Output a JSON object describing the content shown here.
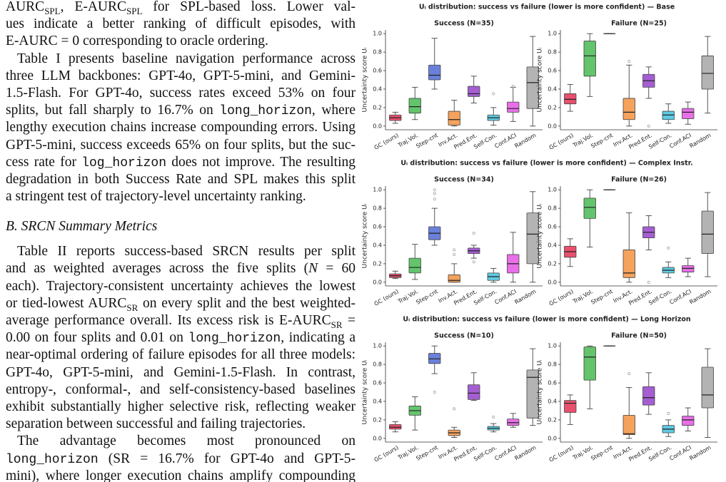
{
  "text": {
    "before_heading": [
      [
        [
          {
            "plain": "AURC"
          },
          {
            "sub": "SPL"
          },
          ", E-AURC",
          {
            "sub": "SPL"
          },
          " for SPL-based loss. Lower val-"
        ],
        [
          "ues indicate a better ranking of difficult episodes, with"
        ],
        [
          "E-AURC = 0 corresponding to oracle ordering."
        ]
      ],
      [
        [
          "Table I presents baseline navigation performance across"
        ],
        [
          "three LLM backbones: GPT-4o, GPT-5-mini, and Gemini-"
        ],
        [
          "1.5-Flash. For GPT-4o, success rates exceed 53% on four"
        ],
        [
          "splits, but fall sharply to 16.7% on ",
          {
            "mono": "long_horizon"
          },
          ", where"
        ],
        [
          "lengthy execution chains increase compounding errors. Using"
        ],
        [
          "GPT-5-mini, success exceeds 65% on four splits, but the suc-"
        ],
        [
          "cess rate for ",
          {
            "mono": "log_horizon"
          },
          " does not improve. The resulting"
        ],
        [
          "degradation in both Success Rate and SPL makes this split"
        ],
        [
          "a stringent test of trajectory-level uncertainty ranking."
        ]
      ]
    ],
    "heading": "B. SRCN Summary Metrics",
    "after_heading": [
      [
        [
          "Table II reports success-based SRCN results per split"
        ],
        [
          "and as weighted averages across the five splits (",
          {
            "i": "N"
          },
          " = 60"
        ],
        [
          "each). Trajectory-consistent uncertainty achieves the lowest"
        ],
        [
          "or tied-lowest AURC",
          {
            "sub": "SR"
          },
          " on every split and the best weighted-"
        ],
        [
          "average performance overall. Its excess risk is E-AURC",
          {
            "sub": "SR"
          },
          " ="
        ],
        [
          "0.00 on four splits and 0.01 on ",
          {
            "mono": "long_horizon"
          },
          ", indicating a"
        ],
        [
          "near-optimal ordering of failure episodes for all three models:"
        ],
        [
          "GPT-4o, GPT-5-mini, and Gemini-1.5-Flash. In contrast,"
        ],
        [
          "entropy-, conformal-, and self-consistency-based baselines"
        ],
        [
          "exhibit substantially higher selective risk, reflecting weaker"
        ],
        [
          "separation between successful and failing trajectories."
        ]
      ],
      [
        [
          "The advantage becomes most pronounced on"
        ],
        [
          {
            "mono": "long_horizon"
          },
          " (SR = 16.7% for GPT-4o and GPT-5-"
        ],
        [
          "mini), where longer execution chains amplify compounding"
        ]
      ]
    ]
  },
  "figure": {
    "row_titles": [
      "Uᵢ distribution: success vs failure  (lower is more confident)  —  Base",
      "Uᵢ distribution: success vs failure  (lower is more confident)  —  Complex Instr.",
      "Uᵢ distribution: success vs failure  (lower is more confident)  —  Long Horizon"
    ]
  },
  "chart_data": [
    {
      "type": "box",
      "title": "Success (N=35)",
      "ylabel": "Uncertainty score Uᵢ",
      "categories": [
        "GC (ours)",
        "Traj.Vol.",
        "Step-cnt",
        "Inv.Act.",
        "Pred.Ent.",
        "Self-Con.",
        "Conf.ACI",
        "Random"
      ],
      "colors": [
        "#e8516e",
        "#63c46c",
        "#6b80da",
        "#f5a25d",
        "#a55ed2",
        "#5fcbe3",
        "#e86fe8",
        "#b3b3b3"
      ],
      "ylim": [
        -0.04,
        1.04
      ],
      "yticks": [
        {
          "value": 0,
          "label": "0.0"
        },
        0.2,
        0.4,
        0.6,
        0.8,
        {
          "value": 1,
          "label": "1.0"
        }
      ],
      "stats": [
        {
          "whislo": 0.03,
          "q1": 0.06,
          "med": 0.09,
          "q3": 0.12,
          "whishi": 0.15
        },
        {
          "whislo": 0.07,
          "q1": 0.14,
          "med": 0.21,
          "q3": 0.3,
          "whishi": 0.42
        },
        {
          "whislo": 0.4,
          "q1": 0.5,
          "med": 0.55,
          "q3": 0.66,
          "whishi": 0.95
        },
        {
          "whislo": 0,
          "q1": 0.01,
          "med": 0.07,
          "q3": 0.16,
          "whishi": 0.28
        },
        {
          "whislo": 0.25,
          "q1": 0.32,
          "med": 0.35,
          "q3": 0.43,
          "whishi": 0.54
        },
        {
          "whislo": 0.01,
          "q1": 0.06,
          "med": 0.09,
          "q3": 0.12,
          "whishi": 0.2,
          "fliers": [
            0.35
          ]
        },
        {
          "whislo": 0.05,
          "q1": 0.15,
          "med": 0.19,
          "q3": 0.26,
          "whishi": 0.42,
          "fliers": [
            0.43
          ]
        },
        {
          "whislo": 0,
          "q1": 0.19,
          "med": 0.47,
          "q3": 0.64,
          "whishi": 0.97
        }
      ]
    },
    {
      "type": "box",
      "title": "Failure (N=25)",
      "ylabel": "Uncertainty score Uᵢ",
      "categories": [
        "GC (ours)",
        "Traj.Vol.",
        "Step-cnt",
        "Inv.Act.",
        "Pred.Ent.",
        "Self-Con.",
        "Conf.ACI",
        "Random"
      ],
      "colors": [
        "#e8516e",
        "#63c46c",
        "#6b80da",
        "#f5a25d",
        "#a55ed2",
        "#5fcbe3",
        "#e86fe8",
        "#b3b3b3"
      ],
      "ylim": [
        -0.04,
        1.04
      ],
      "yticks": [
        {
          "value": 0,
          "label": "0.0"
        },
        0.2,
        0.4,
        0.6,
        0.8,
        {
          "value": 1,
          "label": "1.0"
        }
      ],
      "stats": [
        {
          "whislo": 0.16,
          "q1": 0.24,
          "med": 0.29,
          "q3": 0.35,
          "whishi": 0.45
        },
        {
          "whislo": 0.32,
          "q1": 0.54,
          "med": 0.76,
          "q3": 0.92,
          "whishi": 1
        },
        {
          "whislo": 1,
          "q1": 1,
          "med": 1,
          "q3": 1,
          "whishi": 1
        },
        {
          "whislo": 0,
          "q1": 0.07,
          "med": 0.15,
          "q3": 0.3,
          "whishi": 0.66,
          "fliers": [
            0.7
          ]
        },
        {
          "whislo": 0.3,
          "q1": 0.42,
          "med": 0.49,
          "q3": 0.56,
          "whishi": 0.64,
          "fliers": [
            0
          ]
        },
        {
          "whislo": 0.03,
          "q1": 0.07,
          "med": 0.12,
          "q3": 0.16,
          "whishi": 0.24
        },
        {
          "whislo": 0.02,
          "q1": 0.08,
          "med": 0.15,
          "q3": 0.19,
          "whishi": 0.26
        },
        {
          "whislo": 0.14,
          "q1": 0.4,
          "med": 0.57,
          "q3": 0.76,
          "whishi": 0.97
        }
      ]
    },
    {
      "type": "box",
      "title": "Success (N=34)",
      "ylabel": "Uncertainty score Uᵢ",
      "categories": [
        "GC (ours)",
        "Traj.Vol.",
        "Step-cnt",
        "Inv.Act.",
        "Pred.Ent.",
        "Self-Con.",
        "Conf.ACI",
        "Random"
      ],
      "colors": [
        "#e8516e",
        "#63c46c",
        "#6b80da",
        "#f5a25d",
        "#a55ed2",
        "#5fcbe3",
        "#e86fe8",
        "#b3b3b3"
      ],
      "ylim": [
        -0.04,
        1.04
      ],
      "yticks": [
        {
          "value": 0,
          "label": "0.0"
        },
        0.2,
        0.4,
        0.6,
        0.8,
        {
          "value": 1,
          "label": "1.0"
        }
      ],
      "stats": [
        {
          "whislo": 0.04,
          "q1": 0.05,
          "med": 0.07,
          "q3": 0.09,
          "whishi": 0.12
        },
        {
          "whislo": 0.03,
          "q1": 0.1,
          "med": 0.16,
          "q3": 0.26,
          "whishi": 0.41
        },
        {
          "whislo": 0.4,
          "q1": 0.46,
          "med": 0.53,
          "q3": 0.6,
          "whishi": 0.8,
          "fliers": [
            0.9,
            0.96,
            1
          ]
        },
        {
          "whislo": 0,
          "q1": 0,
          "med": 0.02,
          "q3": 0.08,
          "whishi": 0.2,
          "fliers": [
            0.3,
            0.35
          ]
        },
        {
          "whislo": 0.26,
          "q1": 0.31,
          "med": 0.34,
          "q3": 0.37,
          "whishi": 0.4,
          "fliers": [
            0.22,
            0.53
          ]
        },
        {
          "whislo": 0,
          "q1": 0.02,
          "med": 0.06,
          "q3": 0.1,
          "whishi": 0.15
        },
        {
          "whislo": 0,
          "q1": 0.1,
          "med": 0.2,
          "q3": 0.3,
          "whishi": 0.54
        },
        {
          "whislo": 0,
          "q1": 0.2,
          "med": 0.52,
          "q3": 0.75,
          "whishi": 0.98
        }
      ]
    },
    {
      "type": "box",
      "title": "Failure (N=26)",
      "ylabel": "Uncertainty score Uᵢ",
      "categories": [
        "GC (ours)",
        "Traj.Vol.",
        "Step-cnt",
        "Inv.Act.",
        "Pred.Ent.",
        "Self-Con.",
        "Conf.ACI",
        "Random"
      ],
      "colors": [
        "#e8516e",
        "#63c46c",
        "#6b80da",
        "#f5a25d",
        "#a55ed2",
        "#5fcbe3",
        "#e86fe8",
        "#b3b3b3"
      ],
      "ylim": [
        -0.04,
        1.04
      ],
      "yticks": [
        {
          "value": 0,
          "label": "0.0"
        },
        0.2,
        0.4,
        0.6,
        0.8,
        {
          "value": 1,
          "label": "1.0"
        }
      ],
      "stats": [
        {
          "whislo": 0.17,
          "q1": 0.27,
          "med": 0.33,
          "q3": 0.39,
          "whishi": 0.47
        },
        {
          "whislo": 0.38,
          "q1": 0.69,
          "med": 0.81,
          "q3": 0.91,
          "whishi": 1
        },
        {
          "whislo": 1,
          "q1": 1,
          "med": 1,
          "q3": 1,
          "whishi": 1
        },
        {
          "whislo": 0,
          "q1": 0.05,
          "med": 0.1,
          "q3": 0.35,
          "whishi": 0.75
        },
        {
          "whislo": 0.35,
          "q1": 0.48,
          "med": 0.54,
          "q3": 0.6,
          "whishi": 0.72,
          "fliers": [
            0
          ]
        },
        {
          "whislo": 0.05,
          "q1": 0.1,
          "med": 0.13,
          "q3": 0.16,
          "whishi": 0.22,
          "fliers": [
            0.37
          ]
        },
        {
          "whislo": 0.06,
          "q1": 0.11,
          "med": 0.15,
          "q3": 0.18,
          "whishi": 0.26
        },
        {
          "whislo": 0.06,
          "q1": 0.31,
          "med": 0.52,
          "q3": 0.77,
          "whishi": 0.97
        }
      ]
    },
    {
      "type": "box",
      "title": "Success (N=10)",
      "ylabel": "Uncertainty score Uᵢ",
      "categories": [
        "GC (ours)",
        "Traj.Vol.",
        "Step-cnt",
        "Inv.Act.",
        "Pred.Ent.",
        "Self-Con.",
        "Conf.ACI",
        "Random"
      ],
      "colors": [
        "#e8516e",
        "#63c46c",
        "#6b80da",
        "#f5a25d",
        "#a55ed2",
        "#5fcbe3",
        "#e86fe8",
        "#b3b3b3"
      ],
      "ylim": [
        -0.04,
        1.04
      ],
      "yticks": [
        {
          "value": 0,
          "label": "0.0"
        },
        0.2,
        0.4,
        0.6,
        0.8,
        {
          "value": 1,
          "label": "1.0"
        }
      ],
      "stats": [
        {
          "whislo": 0.07,
          "q1": 0.1,
          "med": 0.12,
          "q3": 0.15,
          "whishi": 0.18
        },
        {
          "whislo": 0.09,
          "q1": 0.25,
          "med": 0.3,
          "q3": 0.35,
          "whishi": 0.45
        },
        {
          "whislo": 0.7,
          "q1": 0.81,
          "med": 0.86,
          "q3": 0.92,
          "whishi": 1,
          "fliers": [
            0.5
          ]
        },
        {
          "whislo": 0.01,
          "q1": 0.03,
          "med": 0.06,
          "q3": 0.09,
          "whishi": 0.12,
          "fliers": [
            0.32
          ]
        },
        {
          "whislo": 0.41,
          "q1": 0.42,
          "med": 0.49,
          "q3": 0.58,
          "whishi": 0.71
        },
        {
          "whislo": 0.07,
          "q1": 0.09,
          "med": 0.11,
          "q3": 0.13,
          "whishi": 0.16,
          "fliers": [
            0.23
          ]
        },
        {
          "whislo": 0.12,
          "q1": 0.14,
          "med": 0.17,
          "q3": 0.21,
          "whishi": 0.27
        },
        {
          "whislo": 0.14,
          "q1": 0.22,
          "med": 0.66,
          "q3": 0.74,
          "whishi": 0.97
        }
      ]
    },
    {
      "type": "box",
      "title": "Failure (N=50)",
      "ylabel": "Uncertainty score Uᵢ",
      "categories": [
        "GC (ours)",
        "Traj.Vol.",
        "Step-cnt",
        "Inv.Act.",
        "Pred.Ent.",
        "Self-Con.",
        "Conf.ACI",
        "Random"
      ],
      "colors": [
        "#e8516e",
        "#63c46c",
        "#6b80da",
        "#f5a25d",
        "#a55ed2",
        "#5fcbe3",
        "#e86fe8",
        "#b3b3b3"
      ],
      "ylim": [
        -0.04,
        1.04
      ],
      "yticks": [
        {
          "value": 0,
          "label": "0.0"
        },
        0.2,
        0.4,
        0.6,
        0.8,
        {
          "value": 1,
          "label": "1.0"
        }
      ],
      "stats": [
        {
          "whislo": 0.15,
          "q1": 0.28,
          "med": 0.38,
          "q3": 0.41,
          "whishi": 0.47
        },
        {
          "whislo": 0.32,
          "q1": 0.63,
          "med": 0.88,
          "q3": 0.99,
          "whishi": 1
        },
        {
          "whislo": 1,
          "q1": 1,
          "med": 1,
          "q3": 1,
          "whishi": 1
        },
        {
          "whislo": 0,
          "q1": 0.04,
          "med": 0.05,
          "q3": 0.25,
          "whishi": 0.55,
          "fliers": [
            0.7
          ]
        },
        {
          "whislo": 0.26,
          "q1": 0.36,
          "med": 0.44,
          "q3": 0.56,
          "whishi": 0.71
        },
        {
          "whislo": 0.02,
          "q1": 0.06,
          "med": 0.1,
          "q3": 0.14,
          "whishi": 0.2,
          "fliers": [
            0.27
          ]
        },
        {
          "whislo": 0.08,
          "q1": 0.14,
          "med": 0.2,
          "q3": 0.24,
          "whishi": 0.33
        },
        {
          "whislo": 0.01,
          "q1": 0.33,
          "med": 0.47,
          "q3": 0.77,
          "whishi": 0.97
        }
      ]
    }
  ]
}
